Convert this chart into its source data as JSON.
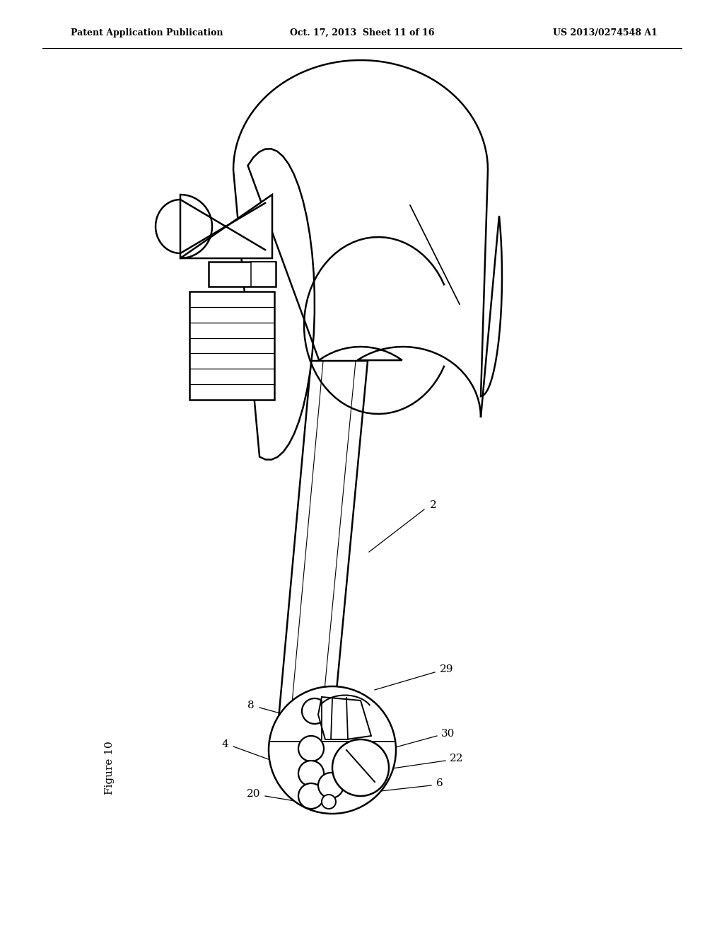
{
  "bg_color": "#ffffff",
  "line_color": "#000000",
  "header_left": "Patent Application Publication",
  "header_center": "Oct. 17, 2013  Sheet 11 of 16",
  "header_right": "US 2013/0274548 A1",
  "figure_label": "Figure 10",
  "ref_numbers": [
    "2",
    "4",
    "6",
    "8",
    "20",
    "22",
    "29",
    "30"
  ],
  "header_fontsize": 9,
  "label_fontsize": 11
}
